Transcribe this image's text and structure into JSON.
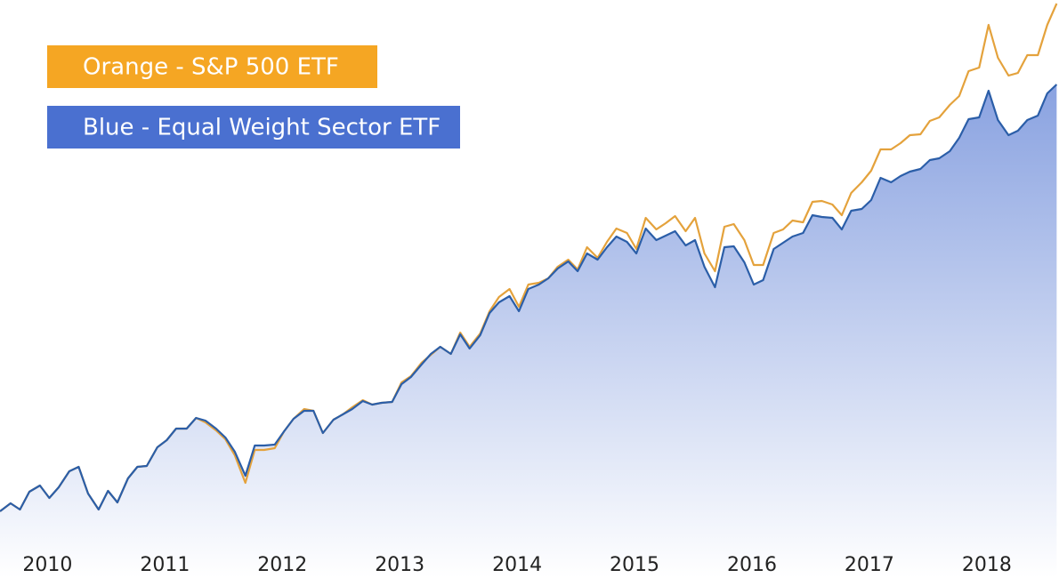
{
  "chart_data": {
    "type": "line",
    "x": [
      2009.58,
      2009.67,
      2009.75,
      2009.83,
      2009.92,
      2010.0,
      2010.08,
      2010.17,
      2010.25,
      2010.33,
      2010.42,
      2010.5,
      2010.58,
      2010.67,
      2010.75,
      2010.83,
      2010.92,
      2011.0,
      2011.08,
      2011.17,
      2011.25,
      2011.33,
      2011.42,
      2011.5,
      2011.58,
      2011.67,
      2011.75,
      2011.83,
      2011.92,
      2012.0,
      2012.08,
      2012.17,
      2012.25,
      2012.33,
      2012.42,
      2012.5,
      2012.58,
      2012.67,
      2012.75,
      2012.83,
      2012.92,
      2013.0,
      2013.08,
      2013.17,
      2013.25,
      2013.33,
      2013.42,
      2013.5,
      2013.58,
      2013.67,
      2013.75,
      2013.83,
      2013.92,
      2014.0,
      2014.08,
      2014.17,
      2014.25,
      2014.33,
      2014.42,
      2014.5,
      2014.58,
      2014.67,
      2014.75,
      2014.83,
      2014.92,
      2015.0,
      2015.08,
      2015.17,
      2015.25,
      2015.33,
      2015.42,
      2015.5,
      2015.58,
      2015.67,
      2015.75,
      2015.83,
      2015.92,
      2016.0,
      2016.08,
      2016.17,
      2016.25,
      2016.33,
      2016.42,
      2016.5,
      2016.58,
      2016.67,
      2016.75,
      2016.83,
      2016.92,
      2017.0,
      2017.08,
      2017.17,
      2017.25,
      2017.33,
      2017.42,
      2017.5,
      2017.58,
      2017.67,
      2017.75,
      2017.83,
      2017.92,
      2018.0,
      2018.08,
      2018.17,
      2018.25,
      2018.33,
      2018.42,
      2018.5,
      2018.58
    ],
    "series": [
      {
        "name": "Orange - S&P 500 ETF",
        "color": "#f5a623",
        "values": [
          75,
          84,
          77,
          97,
          104,
          90,
          102,
          120,
          125,
          95,
          77,
          98,
          85,
          112,
          125,
          126,
          147,
          155,
          168,
          168,
          180,
          175,
          166,
          156,
          138,
          107,
          144,
          144,
          146,
          165,
          179,
          190,
          188,
          163,
          178,
          184,
          192,
          200,
          195,
          197,
          198,
          220,
          227,
          242,
          251,
          260,
          252,
          276,
          260,
          275,
          300,
          316,
          325,
          305,
          330,
          332,
          337,
          350,
          358,
          347,
          372,
          360,
          378,
          393,
          388,
          370,
          405,
          392,
          399,
          407,
          390,
          405,
          365,
          345,
          395,
          398,
          380,
          352,
          352,
          388,
          392,
          402,
          400,
          423,
          424,
          420,
          408,
          433,
          445,
          458,
          482,
          482,
          489,
          498,
          499,
          514,
          518,
          532,
          542,
          570,
          574,
          622,
          585,
          565,
          568,
          588,
          588,
          622,
          646
        ]
      },
      {
        "name": "Blue - Equal Weight Sector ETF",
        "color": "#4a70d0",
        "values": [
          75,
          84,
          77,
          97,
          104,
          90,
          102,
          120,
          125,
          95,
          77,
          98,
          85,
          112,
          125,
          126,
          147,
          155,
          168,
          168,
          180,
          177,
          168,
          158,
          142,
          115,
          149,
          149,
          150,
          165,
          179,
          188,
          188,
          163,
          178,
          184,
          190,
          199,
          195,
          197,
          198,
          218,
          226,
          240,
          252,
          260,
          252,
          274,
          258,
          273,
          298,
          310,
          317,
          300,
          325,
          330,
          337,
          348,
          356,
          345,
          365,
          358,
          372,
          384,
          378,
          365,
          393,
          380,
          385,
          390,
          374,
          380,
          350,
          327,
          372,
          373,
          355,
          330,
          335,
          370,
          377,
          384,
          388,
          408,
          406,
          405,
          392,
          413,
          415,
          425,
          450,
          445,
          452,
          457,
          460,
          470,
          472,
          480,
          495,
          516,
          518,
          548,
          515,
          498,
          503,
          515,
          520,
          545,
          555
        ]
      }
    ],
    "xlim": [
      2009.58,
      2018.6
    ],
    "xticks": [
      2010,
      2011,
      2012,
      2013,
      2014,
      2015,
      2016,
      2017,
      2018
    ],
    "ylim": [
      0,
      650
    ],
    "fill_area": true
  }
}
